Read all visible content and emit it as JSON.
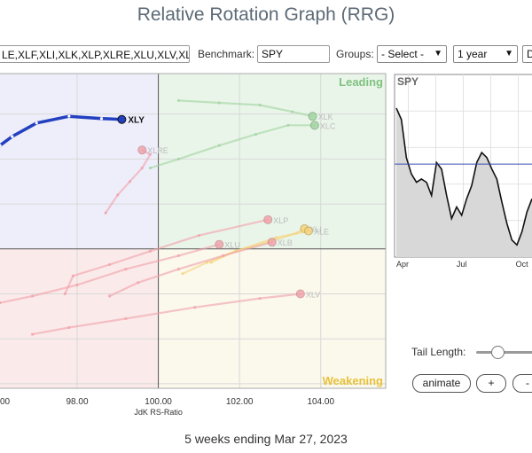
{
  "title": "Relative Rotation Graph (RRG)",
  "toolbar": {
    "tickers_value": "LE,XLF,XLI,XLK,XLP,XLRE,XLU,XLV,XLI",
    "benchmark_label": "Benchmark:",
    "benchmark_value": "SPY",
    "groups_label": "Groups:",
    "groups_value": "- Select -",
    "period_value": "1 year",
    "extra_value": "D"
  },
  "colors": {
    "xly": "#2340c0",
    "leading_bg": "#eaf5ea",
    "weakening_bg": "#fbf8ec",
    "lagging_bg": "#fbeaea",
    "improving_bg": "#eeeefb",
    "leading_text": "#7fc27f",
    "weakening_text": "#e8c23a"
  },
  "chart_data": [
    {
      "type": "scatter",
      "title": "",
      "xlabel": "JdK RS-Ratio",
      "ylabel": "",
      "xlim": [
        96.1,
        105.6
      ],
      "ylim": [
        96.9,
        103.9
      ],
      "x_ticks": [
        "98.00",
        "100.00",
        "102.00",
        "104.00"
      ],
      "x_tick_values": [
        98,
        100,
        102,
        104
      ],
      "extra_x_tick_label": "00",
      "grid": true,
      "quadrants": {
        "leading": "Leading",
        "weakening": "Weakening",
        "lagging": "",
        "improving": ""
      },
      "series": [
        {
          "name": "XLY",
          "highlight": true,
          "points": [
            [
              96.1,
              102.3
            ],
            [
              96.4,
              102.5
            ],
            [
              97.0,
              102.8
            ],
            [
              97.8,
              102.95
            ],
            [
              98.6,
              102.9
            ],
            [
              99.1,
              102.88
            ]
          ]
        },
        {
          "name": "XLK",
          "points": [
            [
              100.5,
              103.3
            ],
            [
              101.5,
              103.25
            ],
            [
              102.5,
              103.2
            ],
            [
              103.3,
              103.05
            ],
            [
              103.8,
              102.95
            ]
          ]
        },
        {
          "name": "XLC",
          "points": [
            [
              99.8,
              101.8
            ],
            [
              100.5,
              102.0
            ],
            [
              101.5,
              102.3
            ],
            [
              102.4,
              102.55
            ],
            [
              103.2,
              102.75
            ],
            [
              103.85,
              102.75
            ]
          ]
        },
        {
          "name": "XLRE",
          "points": [
            [
              98.7,
              100.8
            ],
            [
              99.0,
              101.2
            ],
            [
              99.3,
              101.5
            ],
            [
              99.6,
              101.8
            ],
            [
              99.8,
              102.1
            ],
            [
              99.6,
              102.2
            ]
          ]
        },
        {
          "name": "XLP",
          "points": [
            [
              97.7,
              99.0
            ],
            [
              97.9,
              99.4
            ],
            [
              98.8,
              99.65
            ],
            [
              99.8,
              99.95
            ],
            [
              101.0,
              100.3
            ],
            [
              102.7,
              100.65
            ]
          ]
        },
        {
          "name": "XLI",
          "points": [
            [
              101.3,
              99.7
            ],
            [
              101.9,
              99.95
            ],
            [
              102.7,
              100.15
            ],
            [
              103.4,
              100.35
            ],
            [
              103.6,
              100.45
            ]
          ]
        },
        {
          "name": "XLE",
          "points": [
            [
              100.6,
              99.45
            ],
            [
              101.2,
              99.7
            ],
            [
              101.9,
              99.95
            ],
            [
              102.9,
              100.25
            ],
            [
              103.7,
              100.4
            ]
          ]
        },
        {
          "name": "XLB",
          "points": [
            [
              98.8,
              98.95
            ],
            [
              99.5,
              99.25
            ],
            [
              100.5,
              99.55
            ],
            [
              101.6,
              99.85
            ],
            [
              102.8,
              100.15
            ]
          ]
        },
        {
          "name": "XLU",
          "points": [
            [
              96.1,
              98.8
            ],
            [
              96.9,
              98.95
            ],
            [
              98.0,
              99.2
            ],
            [
              99.2,
              99.55
            ],
            [
              100.5,
              99.85
            ],
            [
              101.5,
              100.1
            ]
          ]
        },
        {
          "name": "XLV",
          "points": [
            [
              96.9,
              98.1
            ],
            [
              97.8,
              98.25
            ],
            [
              99.2,
              98.45
            ],
            [
              100.9,
              98.7
            ],
            [
              102.5,
              98.9
            ],
            [
              103.5,
              99.0
            ]
          ]
        }
      ],
      "labels": {
        "XLY": "XLY",
        "XLK": "XLK",
        "XLC": "XLC",
        "XLRE": "XLRE",
        "XLP": "XLP",
        "XLI": "XLI",
        "XLE": "XLE",
        "XLB": "XLB",
        "XLU": "XLU",
        "XLV": "XLV"
      }
    },
    {
      "type": "area",
      "title": "SPY",
      "x_ticks": [
        "Apr",
        "Jul",
        "Oct"
      ],
      "x_tick_index": [
        0,
        13,
        25
      ],
      "reference_value": 0.51,
      "values": [
        0.85,
        0.78,
        0.55,
        0.45,
        0.4,
        0.42,
        0.4,
        0.32,
        0.52,
        0.48,
        0.32,
        0.18,
        0.25,
        0.2,
        0.3,
        0.38,
        0.52,
        0.58,
        0.55,
        0.48,
        0.42,
        0.28,
        0.15,
        0.05,
        0.02,
        0.1,
        0.22,
        0.3
      ]
    }
  ],
  "footer": {
    "weeks_text": "5 weeks ending Mar 27, 2023",
    "tail_length_label": "Tail Length:",
    "tail_length_fraction": 0.33,
    "animate_label": "animate",
    "plus_label": "+",
    "minus_label": "-"
  }
}
